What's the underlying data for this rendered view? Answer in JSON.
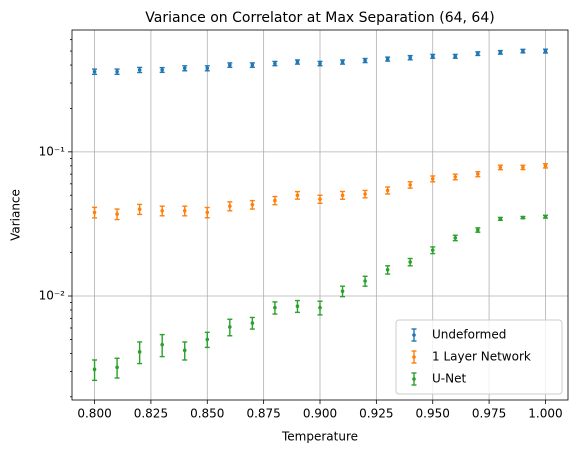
{
  "chart_data": {
    "type": "errorbar",
    "title": "Variance on Correlator at Max Separation (64, 64)",
    "xlabel": "Temperature",
    "ylabel": "Variance",
    "x": [
      0.8,
      0.81,
      0.82,
      0.83,
      0.84,
      0.85,
      0.86,
      0.87,
      0.88,
      0.89,
      0.9,
      0.91,
      0.92,
      0.93,
      0.94,
      0.95,
      0.96,
      0.97,
      0.98,
      0.99,
      1.0
    ],
    "series": [
      {
        "name": "Undeformed",
        "color": "#1f77b4",
        "values": [
          0.36,
          0.36,
          0.37,
          0.37,
          0.38,
          0.38,
          0.4,
          0.4,
          0.41,
          0.42,
          0.41,
          0.42,
          0.43,
          0.44,
          0.45,
          0.46,
          0.46,
          0.48,
          0.49,
          0.5,
          0.5
        ],
        "errors": [
          0.015,
          0.015,
          0.015,
          0.014,
          0.015,
          0.015,
          0.014,
          0.014,
          0.014,
          0.014,
          0.014,
          0.014,
          0.014,
          0.014,
          0.015,
          0.014,
          0.014,
          0.014,
          0.014,
          0.014,
          0.015
        ]
      },
      {
        "name": "1 Layer Network",
        "color": "#ff7f0e",
        "values": [
          0.038,
          0.037,
          0.04,
          0.039,
          0.039,
          0.038,
          0.042,
          0.043,
          0.046,
          0.05,
          0.047,
          0.05,
          0.051,
          0.054,
          0.059,
          0.065,
          0.067,
          0.07,
          0.078,
          0.078,
          0.08
        ],
        "errors": [
          0.0032,
          0.0031,
          0.0032,
          0.003,
          0.003,
          0.0031,
          0.003,
          0.0029,
          0.003,
          0.003,
          0.003,
          0.0031,
          0.003,
          0.003,
          0.003,
          0.003,
          0.003,
          0.0028,
          0.0028,
          0.0027,
          0.0027
        ]
      },
      {
        "name": "U-Net",
        "color": "#2ca02c",
        "values": [
          0.0031,
          0.0032,
          0.0041,
          0.0046,
          0.0042,
          0.005,
          0.0061,
          0.0065,
          0.0083,
          0.0085,
          0.0083,
          0.0108,
          0.0127,
          0.0152,
          0.0172,
          0.0208,
          0.0253,
          0.0287,
          0.0343,
          0.035,
          0.0355
        ],
        "errors": [
          0.0005,
          0.0005,
          0.0007,
          0.0008,
          0.0006,
          0.0006,
          0.0008,
          0.0006,
          0.0008,
          0.0008,
          0.0009,
          0.0009,
          0.001,
          0.001,
          0.001,
          0.0011,
          0.0011,
          0.001,
          0.0008,
          0.0006,
          0.0008
        ]
      }
    ],
    "xlim": [
      0.79,
      1.01
    ],
    "xticks": [
      {
        "value": 0.8,
        "label": "0.800"
      },
      {
        "value": 0.825,
        "label": "0.825"
      },
      {
        "value": 0.85,
        "label": "0.850"
      },
      {
        "value": 0.875,
        "label": "0.875"
      },
      {
        "value": 0.9,
        "label": "0.900"
      },
      {
        "value": 0.925,
        "label": "0.925"
      },
      {
        "value": 0.95,
        "label": "0.950"
      },
      {
        "value": 0.975,
        "label": "0.975"
      },
      {
        "value": 1.0,
        "label": "1.000"
      }
    ],
    "ylim": [
      0.0019,
      0.7
    ],
    "ylog": true,
    "yticks": [
      {
        "value": 0.01,
        "label": "10⁻²"
      },
      {
        "value": 0.1,
        "label": "10⁻¹"
      }
    ],
    "grid": true,
    "legend": "lower right"
  }
}
